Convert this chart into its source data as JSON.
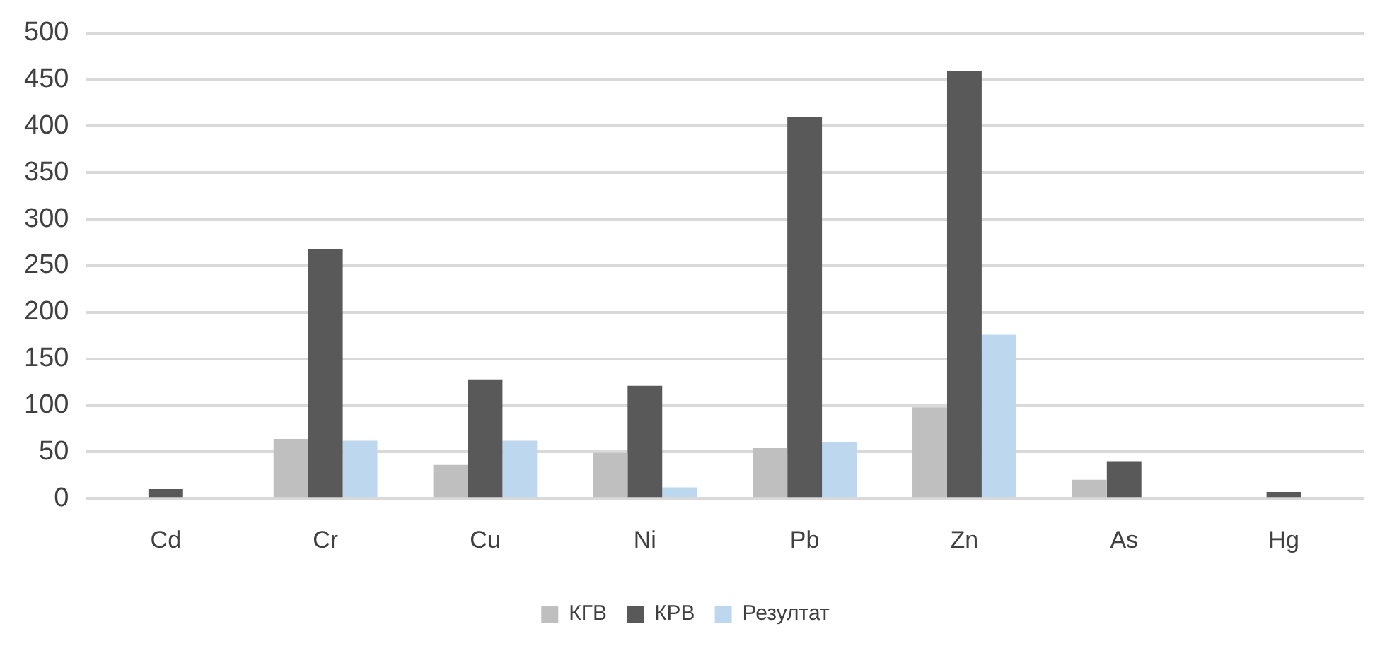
{
  "chart_data": {
    "type": "bar",
    "categories": [
      "Cd",
      "Cr",
      "Cu",
      "Ni",
      "Pb",
      "Zn",
      "As",
      "Hg"
    ],
    "series": [
      {
        "name": "КГВ",
        "color": "#bfbfbf",
        "values": [
          0,
          64,
          36,
          49,
          54,
          98,
          20,
          0
        ]
      },
      {
        "name": "КРВ",
        "color": "#595959",
        "values": [
          10,
          268,
          128,
          121,
          410,
          459,
          40,
          7
        ]
      },
      {
        "name": "Резултат",
        "color": "#bdd7ee",
        "values": [
          0,
          62,
          62,
          12,
          61,
          176,
          0,
          0
        ]
      }
    ],
    "ylim": [
      0,
      500
    ],
    "yticks": [
      0,
      50,
      100,
      150,
      200,
      250,
      300,
      350,
      400,
      450,
      500
    ],
    "grid": "y",
    "legend": "bottom"
  }
}
